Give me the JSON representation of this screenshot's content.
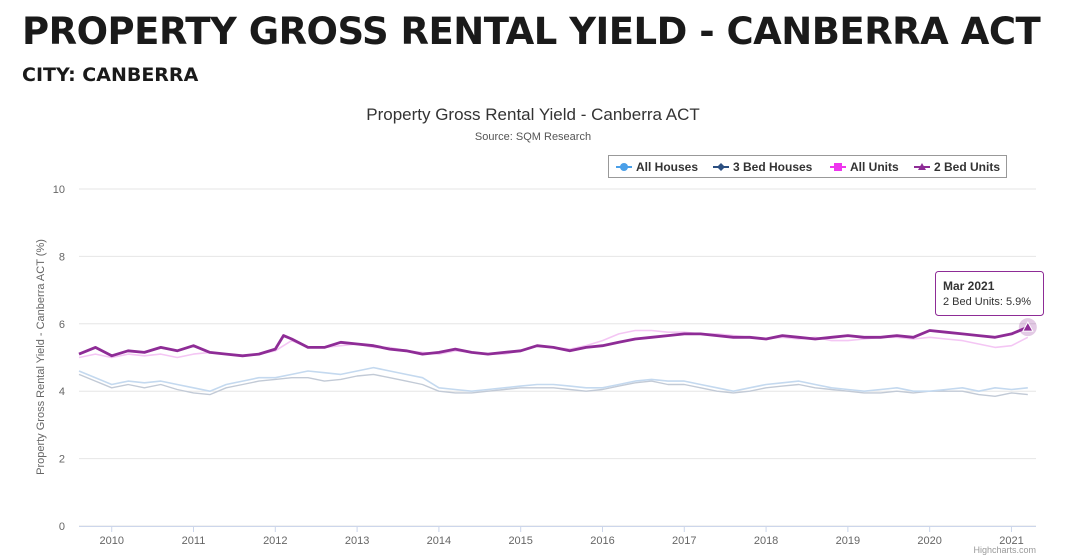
{
  "page": {
    "title": "PROPERTY GROSS RENTAL YIELD - CANBERRA ACT",
    "subtitle": "CITY: CANBERRA"
  },
  "credits": "Highcharts.com",
  "tooltip": {
    "date": "Mar 2021",
    "series": "2 Bed Units",
    "value_text": "5.9%"
  },
  "colors": {
    "all_houses": "#4a9fe8",
    "three_bed_houses": "#2b4f81",
    "all_units": "#ee35ee",
    "two_bed_units": "#8e2c96",
    "all_houses_line_faded": "#c4d9ef",
    "three_bed_houses_line_faded": "#c2cad6",
    "all_units_line_faded": "#f4c6f4",
    "grid": "#e6e6e6"
  },
  "chart_data": {
    "type": "line",
    "title": "Property Gross Rental Yield - Canberra ACT",
    "subtitle": "Source: SQM Research",
    "ylabel": "Property Gross Rental Yield - Canberra ACT (%)",
    "xlabel": "",
    "ylim": [
      0,
      10
    ],
    "yticks": [
      0,
      2,
      4,
      6,
      8,
      10
    ],
    "xlim": [
      2009.6,
      2021.3
    ],
    "xticks": [
      "2010",
      "2011",
      "2012",
      "2013",
      "2014",
      "2015",
      "2016",
      "2017",
      "2018",
      "2019",
      "2020",
      "2021"
    ],
    "grid": true,
    "legend_position": "top-right",
    "highlighted_series": "2 Bed Units",
    "series": [
      {
        "name": "All Houses",
        "marker": "circle",
        "x": [
          2009.6,
          2009.8,
          2010.0,
          2010.2,
          2010.4,
          2010.6,
          2010.8,
          2011.0,
          2011.2,
          2011.4,
          2011.6,
          2011.8,
          2012.0,
          2012.2,
          2012.4,
          2012.6,
          2012.8,
          2013.0,
          2013.2,
          2013.4,
          2013.6,
          2013.8,
          2014.0,
          2014.2,
          2014.4,
          2014.6,
          2014.8,
          2015.0,
          2015.2,
          2015.4,
          2015.6,
          2015.8,
          2016.0,
          2016.2,
          2016.4,
          2016.6,
          2016.8,
          2017.0,
          2017.2,
          2017.4,
          2017.6,
          2017.8,
          2018.0,
          2018.2,
          2018.4,
          2018.6,
          2018.8,
          2019.0,
          2019.2,
          2019.4,
          2019.6,
          2019.8,
          2020.0,
          2020.2,
          2020.4,
          2020.6,
          2020.8,
          2021.0,
          2021.2
        ],
        "values": [
          4.6,
          4.4,
          4.2,
          4.3,
          4.25,
          4.3,
          4.2,
          4.1,
          4.0,
          4.2,
          4.3,
          4.4,
          4.4,
          4.5,
          4.6,
          4.55,
          4.5,
          4.6,
          4.7,
          4.6,
          4.5,
          4.4,
          4.1,
          4.05,
          4.0,
          4.05,
          4.1,
          4.15,
          4.2,
          4.2,
          4.15,
          4.1,
          4.1,
          4.2,
          4.3,
          4.35,
          4.3,
          4.3,
          4.2,
          4.1,
          4.0,
          4.1,
          4.2,
          4.25,
          4.3,
          4.2,
          4.1,
          4.05,
          4.0,
          4.05,
          4.1,
          4.0,
          4.0,
          4.05,
          4.1,
          4.0,
          4.1,
          4.05,
          4.1
        ]
      },
      {
        "name": "3 Bed Houses",
        "marker": "diamond",
        "x": [
          2009.6,
          2009.8,
          2010.0,
          2010.2,
          2010.4,
          2010.6,
          2010.8,
          2011.0,
          2011.2,
          2011.4,
          2011.6,
          2011.8,
          2012.0,
          2012.2,
          2012.4,
          2012.6,
          2012.8,
          2013.0,
          2013.2,
          2013.4,
          2013.6,
          2013.8,
          2014.0,
          2014.2,
          2014.4,
          2014.6,
          2014.8,
          2015.0,
          2015.2,
          2015.4,
          2015.6,
          2015.8,
          2016.0,
          2016.2,
          2016.4,
          2016.6,
          2016.8,
          2017.0,
          2017.2,
          2017.4,
          2017.6,
          2017.8,
          2018.0,
          2018.2,
          2018.4,
          2018.6,
          2018.8,
          2019.0,
          2019.2,
          2019.4,
          2019.6,
          2019.8,
          2020.0,
          2020.2,
          2020.4,
          2020.6,
          2020.8,
          2021.0,
          2021.2
        ],
        "values": [
          4.5,
          4.3,
          4.1,
          4.2,
          4.1,
          4.2,
          4.05,
          3.95,
          3.9,
          4.1,
          4.2,
          4.3,
          4.35,
          4.4,
          4.4,
          4.3,
          4.35,
          4.45,
          4.5,
          4.4,
          4.3,
          4.2,
          4.0,
          3.95,
          3.95,
          4.0,
          4.05,
          4.1,
          4.1,
          4.1,
          4.05,
          4.0,
          4.05,
          4.15,
          4.25,
          4.3,
          4.2,
          4.2,
          4.1,
          4.0,
          3.95,
          4.0,
          4.1,
          4.15,
          4.2,
          4.1,
          4.05,
          4.0,
          3.95,
          3.95,
          4.0,
          3.95,
          4.0,
          4.0,
          4.0,
          3.9,
          3.85,
          3.95,
          3.9
        ]
      },
      {
        "name": "All Units",
        "marker": "square",
        "x": [
          2009.6,
          2009.8,
          2010.0,
          2010.2,
          2010.4,
          2010.6,
          2010.8,
          2011.0,
          2011.2,
          2011.4,
          2011.6,
          2011.8,
          2012.0,
          2012.2,
          2012.4,
          2012.6,
          2012.8,
          2013.0,
          2013.2,
          2013.4,
          2013.6,
          2013.8,
          2014.0,
          2014.2,
          2014.4,
          2014.6,
          2014.8,
          2015.0,
          2015.2,
          2015.4,
          2015.6,
          2015.8,
          2016.0,
          2016.2,
          2016.4,
          2016.6,
          2016.8,
          2017.0,
          2017.2,
          2017.4,
          2017.6,
          2017.8,
          2018.0,
          2018.2,
          2018.4,
          2018.6,
          2018.8,
          2019.0,
          2019.2,
          2019.4,
          2019.6,
          2019.8,
          2020.0,
          2020.2,
          2020.4,
          2020.6,
          2020.8,
          2021.0,
          2021.2
        ],
        "values": [
          5.0,
          5.1,
          5.0,
          5.1,
          5.05,
          5.1,
          5.0,
          5.1,
          5.15,
          5.1,
          5.05,
          5.1,
          5.2,
          5.5,
          5.3,
          5.3,
          5.35,
          5.4,
          5.3,
          5.3,
          5.2,
          5.15,
          5.1,
          5.2,
          5.15,
          5.1,
          5.1,
          5.2,
          5.35,
          5.3,
          5.25,
          5.35,
          5.5,
          5.7,
          5.8,
          5.8,
          5.75,
          5.75,
          5.7,
          5.7,
          5.65,
          5.6,
          5.55,
          5.6,
          5.55,
          5.6,
          5.5,
          5.5,
          5.55,
          5.6,
          5.6,
          5.55,
          5.6,
          5.55,
          5.5,
          5.4,
          5.3,
          5.35,
          5.6
        ]
      },
      {
        "name": "2 Bed Units",
        "marker": "triangle",
        "x": [
          2009.6,
          2009.8,
          2010.0,
          2010.2,
          2010.4,
          2010.6,
          2010.8,
          2011.0,
          2011.2,
          2011.4,
          2011.6,
          2011.8,
          2012.0,
          2012.1,
          2012.2,
          2012.4,
          2012.6,
          2012.8,
          2013.0,
          2013.2,
          2013.4,
          2013.6,
          2013.8,
          2014.0,
          2014.2,
          2014.4,
          2014.6,
          2014.8,
          2015.0,
          2015.2,
          2015.4,
          2015.6,
          2015.8,
          2016.0,
          2016.2,
          2016.4,
          2016.6,
          2016.8,
          2017.0,
          2017.2,
          2017.4,
          2017.6,
          2017.8,
          2018.0,
          2018.2,
          2018.4,
          2018.6,
          2018.8,
          2019.0,
          2019.2,
          2019.4,
          2019.6,
          2019.8,
          2020.0,
          2020.2,
          2020.4,
          2020.6,
          2020.8,
          2021.0,
          2021.2
        ],
        "values": [
          5.1,
          5.3,
          5.05,
          5.2,
          5.15,
          5.3,
          5.2,
          5.35,
          5.15,
          5.1,
          5.05,
          5.1,
          5.25,
          5.65,
          5.55,
          5.3,
          5.3,
          5.45,
          5.4,
          5.35,
          5.25,
          5.2,
          5.1,
          5.15,
          5.25,
          5.15,
          5.1,
          5.15,
          5.2,
          5.35,
          5.3,
          5.2,
          5.3,
          5.35,
          5.45,
          5.55,
          5.6,
          5.65,
          5.7,
          5.7,
          5.65,
          5.6,
          5.6,
          5.55,
          5.65,
          5.6,
          5.55,
          5.6,
          5.65,
          5.6,
          5.6,
          5.65,
          5.6,
          5.8,
          5.75,
          5.7,
          5.65,
          5.6,
          5.7,
          5.9
        ]
      }
    ]
  }
}
